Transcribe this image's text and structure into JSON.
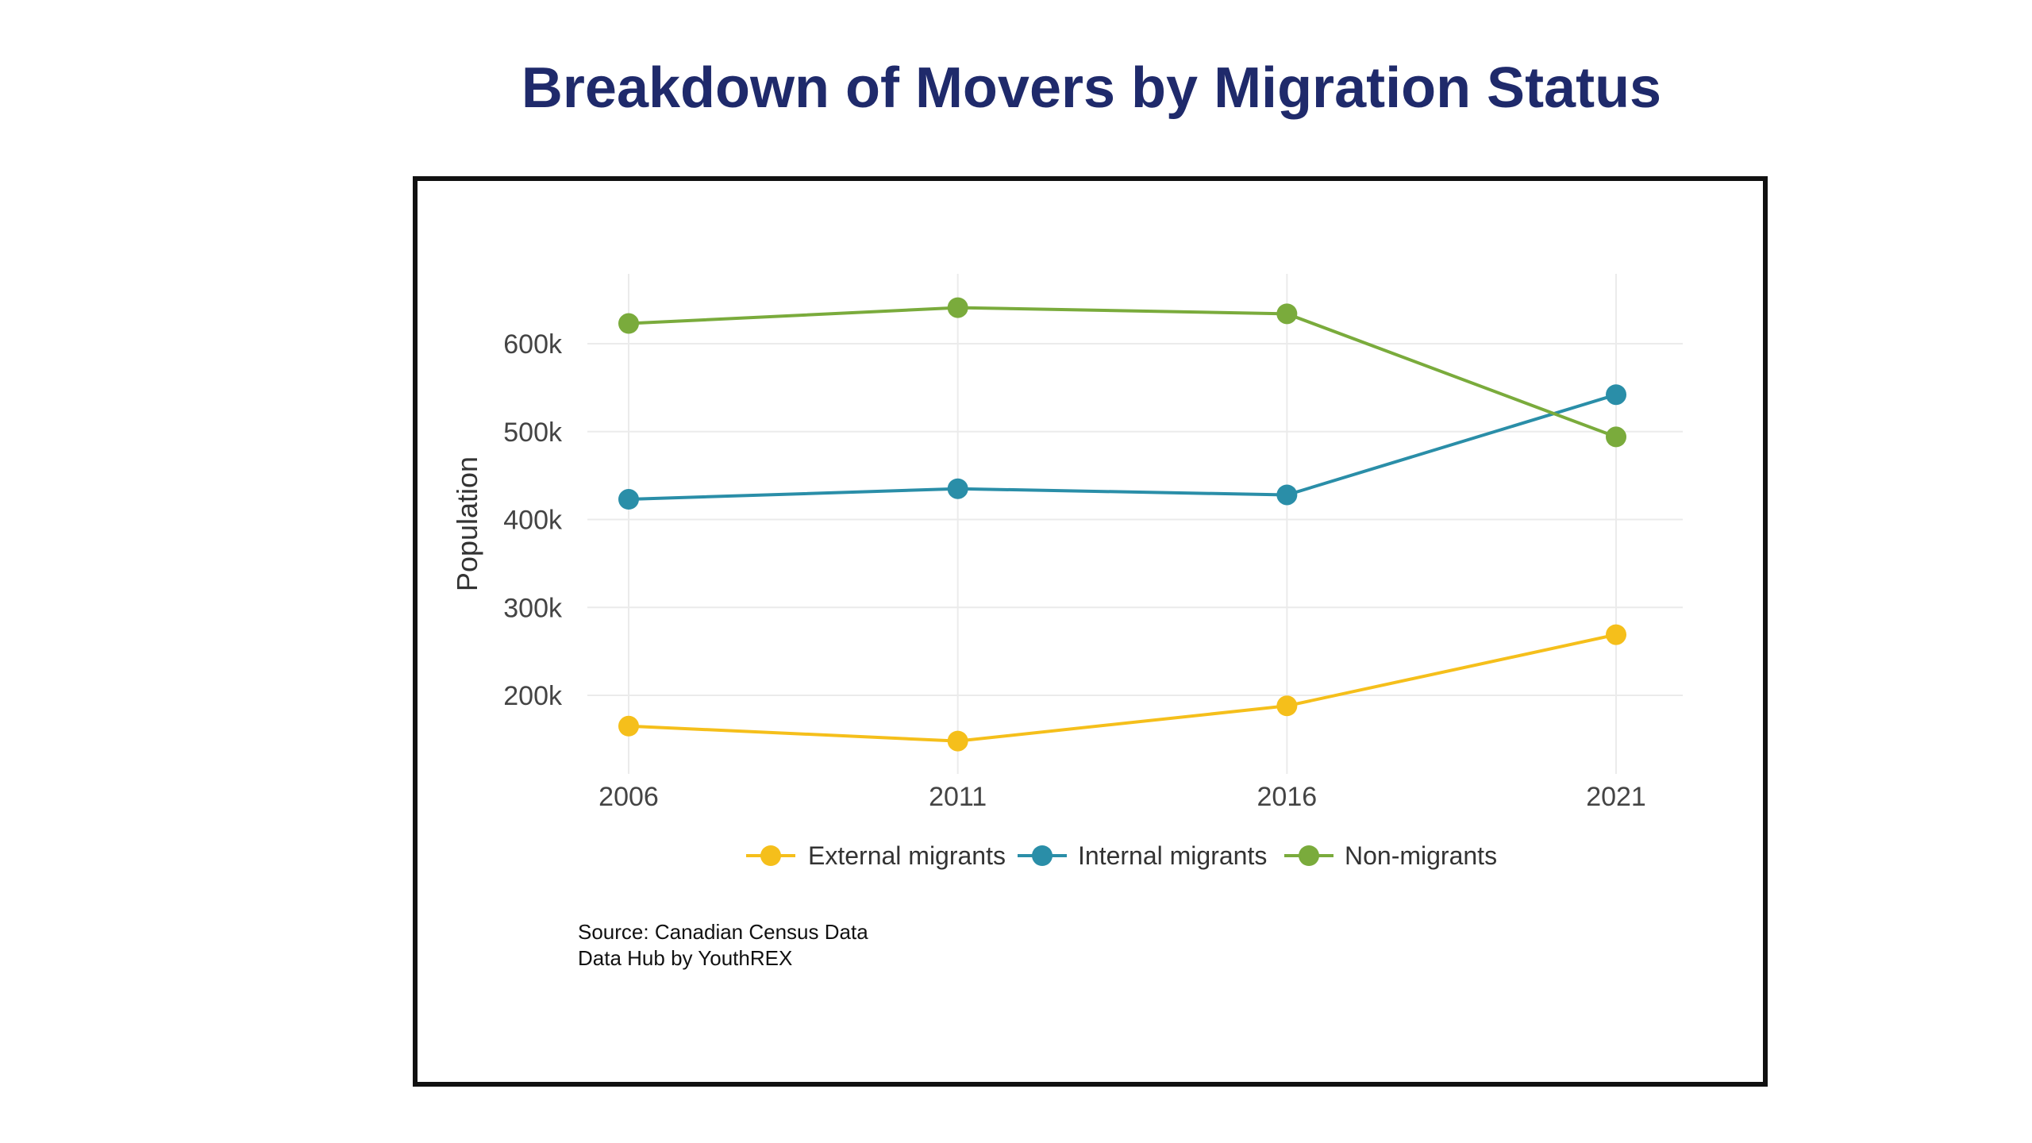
{
  "title": "Breakdown of Movers by Migration Status",
  "source_lines": [
    "Source: Canadian Census Data",
    "Data Hub by YouthREX"
  ],
  "chart_data": {
    "type": "line",
    "title": "Breakdown of Movers by Migration Status",
    "xlabel": "",
    "ylabel": "Population",
    "x": [
      "2006",
      "2011",
      "2016",
      "2021"
    ],
    "y_ticks": [
      200000,
      300000,
      400000,
      500000,
      600000
    ],
    "y_tick_labels": [
      "200k",
      "300k",
      "400k",
      "500k",
      "600k"
    ],
    "ylim": [
      110000,
      680000
    ],
    "grid": true,
    "legend_position": "bottom",
    "series": [
      {
        "name": "External migrants",
        "color": "#f5bf1b",
        "values": [
          165000,
          148000,
          188000,
          269000
        ]
      },
      {
        "name": "Internal migrants",
        "color": "#2a8ea8",
        "values": [
          423000,
          435000,
          428000,
          542000
        ]
      },
      {
        "name": "Non-migrants",
        "color": "#7aab3c",
        "values": [
          623000,
          641000,
          634000,
          494000
        ]
      }
    ]
  }
}
